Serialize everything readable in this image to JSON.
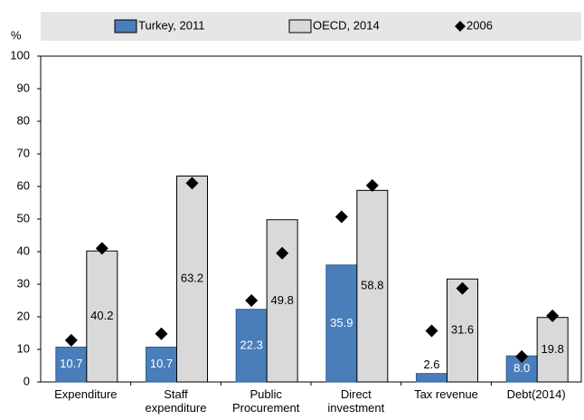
{
  "chart_data": {
    "type": "bar",
    "y_unit": "%",
    "categories": [
      "Expenditure",
      "Staff expenditure",
      "Public Procurement",
      "Direct investment",
      "Tax revenue",
      "Debt(2014)"
    ],
    "series": [
      {
        "name": "Turkey, 2011",
        "color": "#4a7ebb",
        "values": [
          10.7,
          10.7,
          22.3,
          35.9,
          2.6,
          8.0
        ],
        "value_labels": [
          "10.7",
          "10.7",
          "22.3",
          "35.9",
          "2.6",
          "8.0"
        ],
        "values_2006": [
          12.8,
          14.8,
          25.0,
          50.7,
          15.7,
          7.8
        ]
      },
      {
        "name": "OECD, 2014",
        "color": "#d9d9d9",
        "values": [
          40.2,
          63.2,
          49.8,
          58.8,
          31.6,
          19.8
        ],
        "values_2006": [
          41.0,
          61.0,
          39.5,
          60.3,
          28.7,
          20.3
        ]
      }
    ],
    "markers": {
      "name": "2006",
      "color": "#000000"
    },
    "ylim": [
      0,
      100
    ],
    "yticks": [
      0,
      10,
      20,
      30,
      40,
      50,
      60,
      70,
      80,
      90,
      100
    ]
  }
}
